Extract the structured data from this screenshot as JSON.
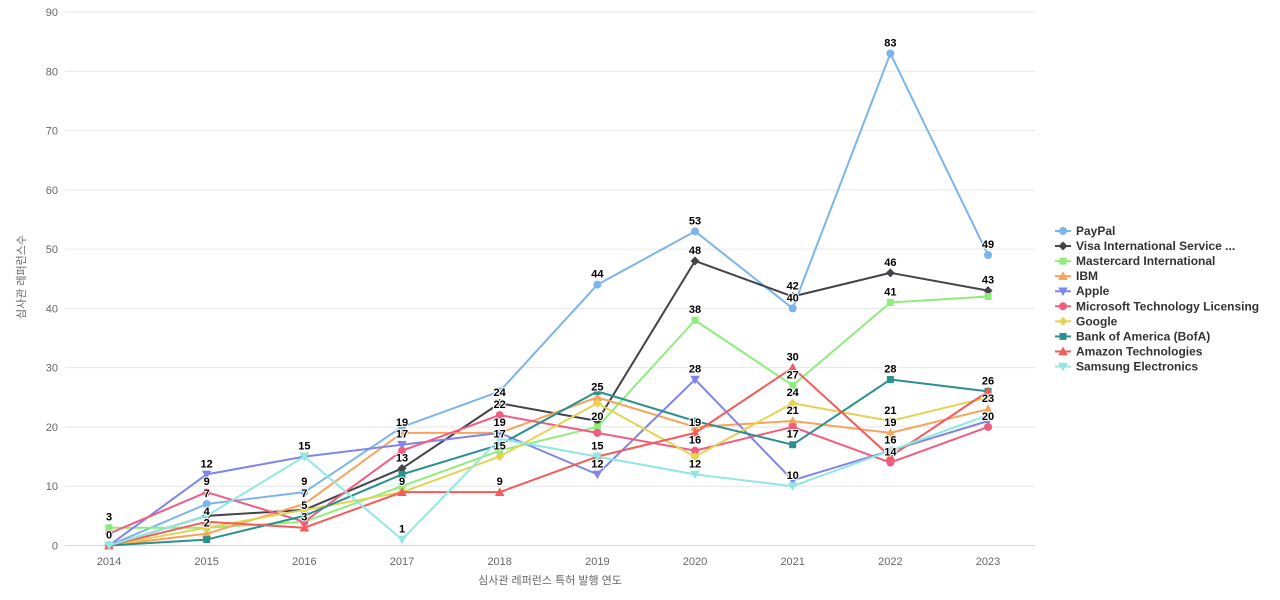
{
  "chart_data": {
    "type": "line",
    "title": "",
    "xlabel": "심사관 레퍼런스 특허 발행 연도",
    "ylabel": "심사관 레퍼런스수",
    "categories": [
      "2014",
      "2015",
      "2016",
      "2017",
      "2018",
      "2019",
      "2020",
      "2021",
      "2022",
      "2023"
    ],
    "ylim": [
      0,
      90
    ],
    "y_tick_step": 10,
    "y_tick_labels": [
      "0",
      "10",
      "20",
      "30",
      "40",
      "50",
      "60",
      "70",
      "80",
      "90"
    ],
    "grid": "horizontal",
    "legend_position": "right-middle",
    "series": [
      {
        "name": "PayPal",
        "color": "#7cb5ec",
        "marker": "circle",
        "values": [
          0,
          7,
          9,
          20,
          26,
          44,
          53,
          40,
          83,
          49
        ],
        "shown_labels": [
          "0",
          "7",
          "9",
          null,
          null,
          "44",
          "53",
          "40",
          "83",
          "49"
        ]
      },
      {
        "name": "Visa International Service ...",
        "color": "#434348",
        "marker": "diamond",
        "values": [
          0,
          5,
          6,
          13,
          24,
          21,
          48,
          42,
          46,
          43
        ],
        "shown_labels": [
          null,
          null,
          null,
          "13",
          "24",
          null,
          "48",
          "42",
          "46",
          "43"
        ]
      },
      {
        "name": "Mastercard International",
        "color": "#90ed7d",
        "marker": "square",
        "values": [
          3,
          3,
          4,
          10,
          16,
          20,
          38,
          27,
          41,
          42
        ],
        "shown_labels": [
          "3",
          null,
          null,
          null,
          null,
          "20",
          "38",
          "27",
          "41",
          null
        ]
      },
      {
        "name": "IBM",
        "color": "#f7a35c",
        "marker": "triangle",
        "values": [
          0,
          2,
          7,
          19,
          19,
          25,
          20,
          21,
          19,
          23
        ],
        "shown_labels": [
          null,
          "2",
          "7",
          "19",
          "19",
          "25",
          null,
          "21",
          "19",
          "23"
        ]
      },
      {
        "name": "Apple",
        "color": "#8085e9",
        "marker": "triangle-down",
        "values": [
          0,
          12,
          15,
          17,
          19,
          12,
          28,
          11,
          16,
          21
        ],
        "shown_labels": [
          null,
          "12",
          null,
          "17",
          null,
          "12",
          "28",
          null,
          null,
          null
        ]
      },
      {
        "name": "Microsoft Technology Licensing",
        "color": "#f15c80",
        "marker": "circle",
        "values": [
          2,
          9,
          4,
          16,
          22,
          19,
          16,
          20,
          14,
          20
        ],
        "shown_labels": [
          null,
          "9",
          null,
          null,
          "22",
          null,
          "16",
          null,
          "14",
          "20"
        ]
      },
      {
        "name": "Google",
        "color": "#e4d354",
        "marker": "diamond",
        "values": [
          0,
          3,
          6,
          9,
          15,
          24,
          15,
          24,
          21,
          25
        ],
        "shown_labels": [
          null,
          null,
          null,
          "9",
          "15",
          null,
          null,
          "24",
          "21",
          null
        ]
      },
      {
        "name": "Bank of America (BofA)",
        "color": "#2b908f",
        "marker": "square",
        "values": [
          0,
          1,
          5,
          12,
          17,
          26,
          21,
          17,
          28,
          26
        ],
        "shown_labels": [
          null,
          null,
          "5",
          null,
          "17",
          null,
          null,
          "17",
          "28",
          null
        ]
      },
      {
        "name": "Amazon Technologies",
        "color": "#f45b5b",
        "marker": "triangle",
        "values": [
          0,
          4,
          3,
          9,
          9,
          15,
          19,
          30,
          15,
          26
        ],
        "shown_labels": [
          null,
          "4",
          "3",
          null,
          "9",
          null,
          "19",
          "30",
          null,
          "26"
        ]
      },
      {
        "name": "Samsung Electronics",
        "color": "#91e8e1",
        "marker": "triangle-down",
        "values": [
          0,
          5,
          15,
          1,
          18,
          15,
          12,
          10,
          16,
          22
        ],
        "shown_labels": [
          null,
          null,
          "15",
          "1",
          null,
          "15",
          "12",
          "10",
          "16",
          null
        ]
      }
    ]
  },
  "palette": {
    "background": "#ffffff",
    "grid_line": "#e6e6e6",
    "x_axis_line": "#ccd6eb",
    "tick_label": "#666666",
    "axis_title": "#666666",
    "data_label": "#000000",
    "legend_text": "#333333"
  }
}
